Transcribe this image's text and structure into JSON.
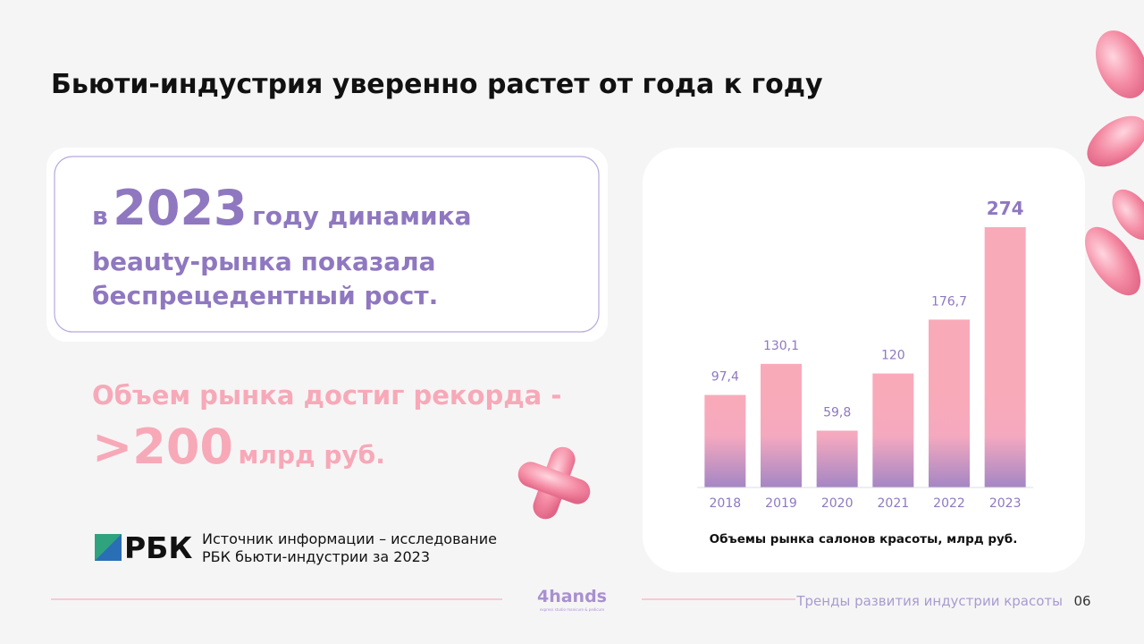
{
  "slide": {
    "title": "Бьюти-индустрия уверенно растет от года к году",
    "callout": {
      "pre": "в",
      "year": "2023",
      "line1_rest": "году динамика",
      "line2": "beauty-рынка показала",
      "line3": "беспрецедентный рост."
    },
    "record": {
      "line1": "Объем рынка достиг рекорда -",
      "number": ">200",
      "unit": "млрд руб."
    },
    "source": {
      "logo": "РБК",
      "line1": "Источник информации – исследование",
      "line2": "РБК бьюти-индустрии за 2023"
    },
    "footer": {
      "brand": "4hands",
      "brand_sub": "express studio manicure & pedicure",
      "topic": "Тренды развития индустрии красоты",
      "page": "06"
    }
  },
  "chart_data": {
    "type": "bar",
    "title": "Объемы рынка салонов красоты, млрд руб.",
    "categories": [
      "2018",
      "2019",
      "2020",
      "2021",
      "2022",
      "2023"
    ],
    "values": [
      97.4,
      130.1,
      59.8,
      120,
      176.7,
      274
    ],
    "value_labels": [
      "97,4",
      "130,1",
      "59,8",
      "120",
      "176,7",
      "274"
    ],
    "color": "#f9aab9"
  }
}
